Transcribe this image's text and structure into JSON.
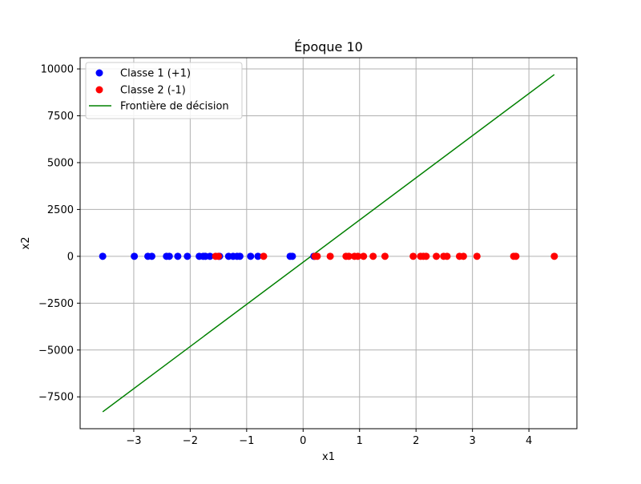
{
  "chart_data": {
    "type": "scatter",
    "title": "Époque 10",
    "xlabel": "x1",
    "ylabel": "x2",
    "xlim": [
      -3.95,
      4.85
    ],
    "ylim": [
      -9200,
      10600
    ],
    "xticks": [
      -3,
      -2,
      -1,
      0,
      1,
      2,
      3,
      4
    ],
    "xtick_labels": [
      "−3",
      "−2",
      "−1",
      "0",
      "1",
      "2",
      "3",
      "4"
    ],
    "yticks": [
      -7500,
      -5000,
      -2500,
      0,
      2500,
      5000,
      7500,
      10000
    ],
    "ytick_labels": [
      "−7500",
      "−5000",
      "−2500",
      "0",
      "2500",
      "5000",
      "7500",
      "10000"
    ],
    "grid": true,
    "legend_position": "top-left",
    "series": [
      {
        "name": "Classe 1 (+1)",
        "kind": "scatter",
        "color": "#0000ff",
        "x": [
          -3.55,
          -2.99,
          -2.75,
          -2.68,
          -2.42,
          -2.37,
          -2.22,
          -2.05,
          -1.84,
          -1.77,
          -1.73,
          -1.65,
          -1.48,
          -1.32,
          -1.24,
          -1.17,
          -1.12,
          -0.93,
          -0.8,
          -0.23,
          -0.19,
          0.19
        ],
        "y": [
          0,
          0,
          0,
          0,
          0,
          0,
          0,
          0,
          0,
          0,
          0,
          0,
          0,
          0,
          0,
          0,
          0,
          0,
          0,
          0,
          0,
          0
        ]
      },
      {
        "name": "Classe 2 (-1)",
        "kind": "scatter",
        "color": "#ff0000",
        "x": [
          -1.55,
          -1.5,
          -0.7,
          0.21,
          0.25,
          0.48,
          0.76,
          0.81,
          0.91,
          0.97,
          1.07,
          1.24,
          1.45,
          1.95,
          2.08,
          2.13,
          2.18,
          2.36,
          2.49,
          2.55,
          2.77,
          2.84,
          3.08,
          3.73,
          3.77,
          4.45
        ],
        "y": [
          0,
          0,
          0,
          0,
          0,
          0,
          0,
          0,
          0,
          0,
          0,
          0,
          0,
          0,
          0,
          0,
          0,
          0,
          0,
          0,
          0,
          0,
          0,
          0,
          0,
          0
        ]
      },
      {
        "name": "Frontière de décision",
        "kind": "line",
        "color": "#008000",
        "x": [
          -3.55,
          4.45
        ],
        "y": [
          -8300,
          9700
        ]
      }
    ]
  }
}
